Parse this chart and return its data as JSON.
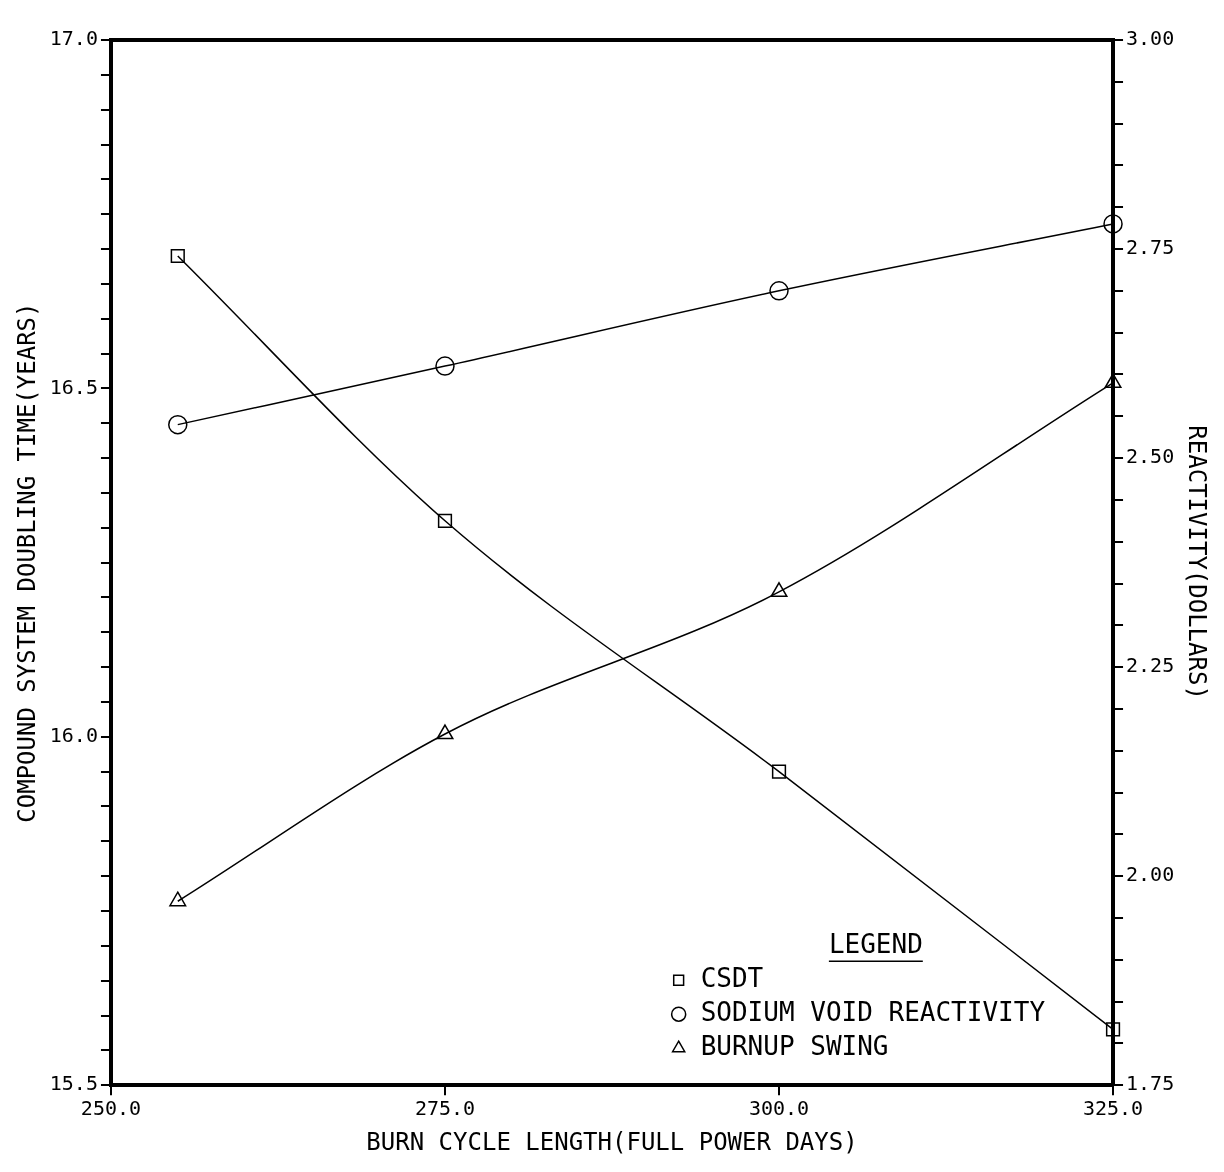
{
  "chart_data": {
    "type": "line",
    "xlabel": "BURN CYCLE LENGTH(FULL POWER DAYS)",
    "ylabel": "COMPOUND SYSTEM DOUBLING TIME(YEARS)",
    "y2label": "REACTIVITY(DOLLARS)",
    "legend_title": "LEGEND",
    "legend": "bottom right",
    "x": [
      255,
      275,
      300,
      325
    ],
    "xlim": [
      250,
      325
    ],
    "xticks": [
      {
        "value": 250,
        "label": "250.0"
      },
      {
        "value": 275,
        "label": "275.0"
      },
      {
        "value": 300,
        "label": "300.0"
      },
      {
        "value": 325,
        "label": "325.0"
      }
    ],
    "ylim": [
      15.5,
      17.0
    ],
    "yticks": [
      {
        "value": 15.5,
        "label": "15.5"
      },
      {
        "value": 15.55,
        "label": null
      },
      {
        "value": 15.6,
        "label": null
      },
      {
        "value": 15.65,
        "label": null
      },
      {
        "value": 15.7,
        "label": null
      },
      {
        "value": 15.75,
        "label": null
      },
      {
        "value": 15.8,
        "label": null
      },
      {
        "value": 15.85,
        "label": null
      },
      {
        "value": 15.9,
        "label": null
      },
      {
        "value": 15.95,
        "label": null
      },
      {
        "value": 16.0,
        "label": "16.0"
      },
      {
        "value": 16.05,
        "label": null
      },
      {
        "value": 16.1,
        "label": null
      },
      {
        "value": 16.15,
        "label": null
      },
      {
        "value": 16.2,
        "label": null
      },
      {
        "value": 16.25,
        "label": null
      },
      {
        "value": 16.3,
        "label": null
      },
      {
        "value": 16.35,
        "label": null
      },
      {
        "value": 16.4,
        "label": null
      },
      {
        "value": 16.45,
        "label": null
      },
      {
        "value": 16.5,
        "label": "16.5"
      },
      {
        "value": 16.55,
        "label": null
      },
      {
        "value": 16.6,
        "label": null
      },
      {
        "value": 16.65,
        "label": null
      },
      {
        "value": 16.7,
        "label": null
      },
      {
        "value": 16.75,
        "label": null
      },
      {
        "value": 16.8,
        "label": null
      },
      {
        "value": 16.85,
        "label": null
      },
      {
        "value": 16.9,
        "label": null
      },
      {
        "value": 16.95,
        "label": null
      },
      {
        "value": 17.0,
        "label": "17.0"
      }
    ],
    "y2lim": [
      1.75,
      3.0
    ],
    "y2ticks": [
      {
        "value": 1.75,
        "label": "1.75"
      },
      {
        "value": 1.8,
        "label": null
      },
      {
        "value": 1.85,
        "label": null
      },
      {
        "value": 1.9,
        "label": null
      },
      {
        "value": 1.95,
        "label": null
      },
      {
        "value": 2.0,
        "label": "2.00"
      },
      {
        "value": 2.05,
        "label": null
      },
      {
        "value": 2.1,
        "label": null
      },
      {
        "value": 2.15,
        "label": null
      },
      {
        "value": 2.2,
        "label": null
      },
      {
        "value": 2.25,
        "label": "2.25"
      },
      {
        "value": 2.3,
        "label": null
      },
      {
        "value": 2.35,
        "label": null
      },
      {
        "value": 2.4,
        "label": null
      },
      {
        "value": 2.45,
        "label": null
      },
      {
        "value": 2.5,
        "label": "2.50"
      },
      {
        "value": 2.55,
        "label": null
      },
      {
        "value": 2.6,
        "label": null
      },
      {
        "value": 2.65,
        "label": null
      },
      {
        "value": 2.7,
        "label": null
      },
      {
        "value": 2.75,
        "label": "2.75"
      },
      {
        "value": 2.8,
        "label": null
      },
      {
        "value": 2.85,
        "label": null
      },
      {
        "value": 2.9,
        "label": null
      },
      {
        "value": 2.95,
        "label": null
      },
      {
        "value": 3.0,
        "label": "3.00"
      }
    ],
    "series": [
      {
        "name": "CSDT",
        "color": "#000000",
        "marker": "square",
        "values": [
          16.69,
          16.31,
          15.95,
          15.58
        ]
      },
      {
        "name": "SODIUM VOID REACTIVITY",
        "color": "#000000",
        "marker": "circle",
        "axis": "y2",
        "values": [
          2.54,
          2.61,
          2.7,
          2.78
        ]
      },
      {
        "name": "BURNUP SWING",
        "color": "#000000",
        "marker": "triangle",
        "axis": "y2",
        "values": [
          1.97,
          2.17,
          2.34,
          2.59
        ]
      }
    ]
  }
}
